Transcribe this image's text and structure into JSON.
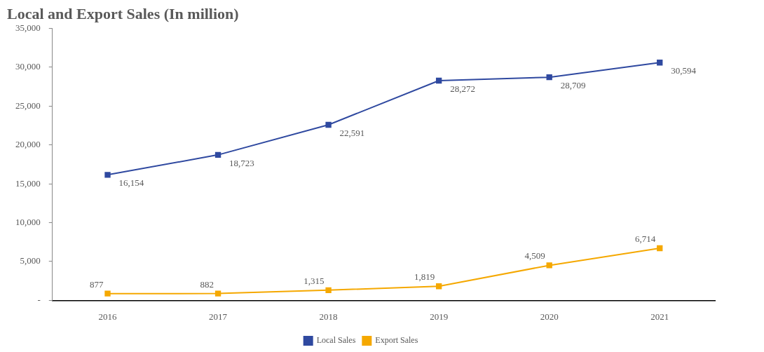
{
  "chart_data": {
    "type": "line",
    "title": "Local and Export Sales (In million)",
    "categories": [
      "2016",
      "2017",
      "2018",
      "2019",
      "2020",
      "2021"
    ],
    "series": [
      {
        "name": "Local Sales",
        "color": "#2f49a0",
        "values": [
          16154,
          18723,
          22591,
          28272,
          28709,
          30594
        ],
        "value_labels": [
          "16,154",
          "18,723",
          "22,591",
          "28,272",
          "28,709",
          "30,594"
        ]
      },
      {
        "name": "Export Sales",
        "color": "#f5a800",
        "values": [
          877,
          882,
          1315,
          1819,
          4509,
          6714
        ],
        "value_labels": [
          "877",
          "882",
          "1,315",
          "1,819",
          "4,509",
          "6,714"
        ]
      }
    ],
    "ylim": [
      0,
      35000
    ],
    "yticks": [
      {
        "value": 0,
        "label": "-"
      },
      {
        "value": 5000,
        "label": "5,000"
      },
      {
        "value": 10000,
        "label": "10,000"
      },
      {
        "value": 15000,
        "label": "15,000"
      },
      {
        "value": 20000,
        "label": "20,000"
      },
      {
        "value": 25000,
        "label": "25,000"
      },
      {
        "value": 30000,
        "label": "30,000"
      },
      {
        "value": 35000,
        "label": "35,000"
      }
    ],
    "grid": false,
    "legend": "bottom",
    "marker": "square",
    "line_style": "solid"
  }
}
